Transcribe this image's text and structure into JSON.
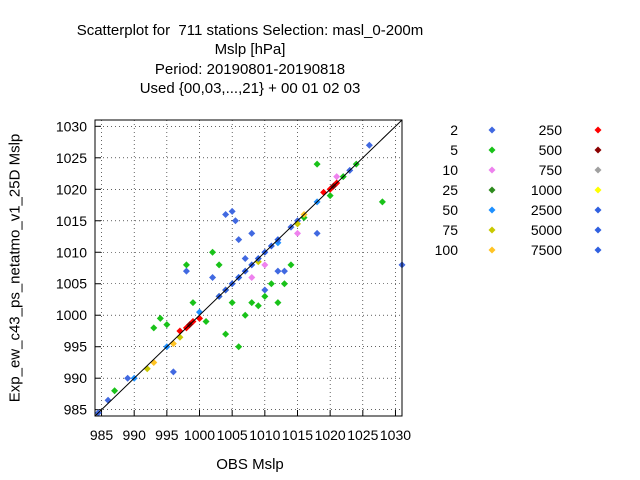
{
  "chart_data": {
    "type": "scatter",
    "title_lines": [
      "Scatterplot for  711 stations Selection: masl_0-200m",
      "Mslp [hPa]",
      "Period: 20190801-20190818",
      "Used {00,03,...,21} + 00 01 02 03"
    ],
    "xlabel": "OBS Mslp",
    "ylabel": "Exp_ew_c43_ps_netatmo_v1_25D Mslp",
    "xlim": [
      984,
      1031
    ],
    "ylim": [
      984,
      1031
    ],
    "xticks": [
      985,
      990,
      995,
      1000,
      1005,
      1010,
      1015,
      1020,
      1025,
      1030
    ],
    "yticks": [
      985,
      990,
      995,
      1000,
      1005,
      1010,
      1015,
      1020,
      1025,
      1030
    ],
    "grid": true,
    "diagonal": true,
    "legend_position": "right",
    "legend": [
      {
        "label": "2",
        "color": "#4169e1"
      },
      {
        "label": "5",
        "color": "#19c219"
      },
      {
        "label": "10",
        "color": "#ee82ee"
      },
      {
        "label": "25",
        "color": "#2e8b1e"
      },
      {
        "label": "50",
        "color": "#1e90ff"
      },
      {
        "label": "75",
        "color": "#c8c800"
      },
      {
        "label": "100",
        "color": "#ffc425"
      },
      {
        "label": "250",
        "color": "#ff0000"
      },
      {
        "label": "500",
        "color": "#8b0000"
      },
      {
        "label": "750",
        "color": "#a0a0a0"
      },
      {
        "label": "1000",
        "color": "#ffff00"
      },
      {
        "label": "2500",
        "color": "#3060e0"
      },
      {
        "label": "5000",
        "color": "#3060e0"
      },
      {
        "label": "7500",
        "color": "#3060e0"
      }
    ],
    "series": [
      {
        "name": "2",
        "color": "#4169e1",
        "x": [
          984.5,
          986,
          989,
          996,
          998,
          1002,
          1004,
          1005,
          1005.5,
          1006,
          1007,
          1008,
          1010,
          1012,
          1013,
          1014,
          1015,
          1018,
          1023,
          1026,
          1031
        ],
        "y": [
          984.5,
          986.5,
          990,
          991,
          1007,
          1006,
          1016,
          1016.5,
          1015,
          1012,
          1009,
          1013,
          1004,
          1007,
          1007,
          1014,
          1015,
          1013,
          1023,
          1027,
          1008
        ]
      },
      {
        "name": "5",
        "color": "#19c219",
        "x": [
          987,
          993,
          994,
          995,
          998,
          999,
          1001,
          1002,
          1003,
          1004,
          1005,
          1006,
          1007,
          1008,
          1009,
          1010,
          1011,
          1012,
          1013,
          1014,
          1016,
          1018,
          1020,
          1022,
          1024,
          1028
        ],
        "y": [
          988,
          998,
          999.5,
          998.5,
          1008,
          1002,
          999,
          1010,
          1008,
          997,
          1002,
          995,
          1000,
          1002,
          1001.5,
          1003,
          1005,
          1002,
          1005,
          1008,
          1015.5,
          1024,
          1019,
          1022,
          1024,
          1018
        ]
      },
      {
        "name": "10",
        "color": "#ee82ee",
        "x": [
          1008,
          1010,
          1015,
          1021
        ],
        "y": [
          1006,
          1008,
          1013,
          1022
        ]
      },
      {
        "name": "50",
        "color": "#1e90ff",
        "x": [
          990,
          995,
          1000,
          1006,
          1012,
          1018
        ],
        "y": [
          990,
          995,
          1000.5,
          1006,
          1011.5,
          1018
        ]
      },
      {
        "name": "75",
        "color": "#c8c800",
        "x": [
          992,
          997,
          1003,
          1009,
          1015
        ],
        "y": [
          991.5,
          996.5,
          1003,
          1008.5,
          1014.5
        ]
      },
      {
        "name": "100",
        "color": "#ffc425",
        "x": [
          993,
          996,
          1000,
          1004,
          1016
        ],
        "y": [
          992.5,
          995.5,
          999.5,
          1004,
          1016
        ]
      },
      {
        "name": "250",
        "color": "#ff0000",
        "x": [
          997,
          998,
          999,
          1000,
          1019,
          1020,
          1021
        ],
        "y": [
          997.5,
          998,
          999,
          999.5,
          1019.5,
          1020,
          1021
        ]
      },
      {
        "name": "500",
        "color": "#8b0000",
        "x": [
          998.5,
          1020.5
        ],
        "y": [
          998.5,
          1020.5
        ]
      },
      {
        "name": "2500",
        "color": "#3060e0",
        "x": [
          1003,
          1004,
          1005,
          1006,
          1007,
          1008,
          1009,
          1010,
          1011,
          1012
        ],
        "y": [
          1003,
          1004,
          1005,
          1006,
          1007,
          1008,
          1009,
          1010,
          1011,
          1012
        ]
      }
    ]
  }
}
